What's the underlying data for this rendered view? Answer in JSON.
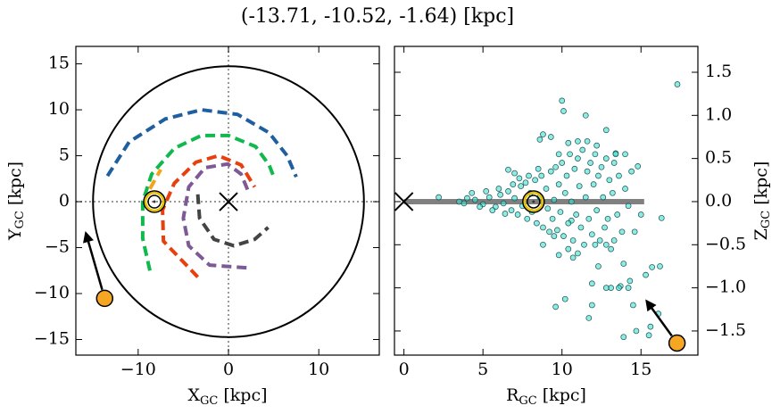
{
  "title": "(-13.71, -10.52, -1.64) [kpc]",
  "chart_data": [
    {
      "type": "line",
      "xlabel": {
        "main": "X",
        "sub": "GC",
        "unit": " [kpc]"
      },
      "ylabel": {
        "main": "Y",
        "sub": "GC",
        "unit": " [kpc]"
      },
      "xlim": [
        -16.9,
        16.7
      ],
      "ylim": [
        -16.7,
        16.9
      ],
      "xticks": [
        {
          "value": -10,
          "label": "−10"
        },
        0,
        10
      ],
      "yticks": [
        {
          "value": -15,
          "label": "−15"
        },
        {
          "value": -10,
          "label": "−10"
        },
        {
          "value": -5,
          "label": "−5"
        },
        0,
        5,
        10,
        15
      ],
      "boundary_radius": 15,
      "galactic_center": {
        "x": 0,
        "y": 0
      },
      "sun": {
        "x": -8.2,
        "y": 0
      },
      "target": {
        "x": -13.71,
        "y": -10.52,
        "color": "#f5a623"
      },
      "series": [
        {
          "color": "#1f5fa0",
          "x": [
            -13.4,
            -11,
            -7,
            -3,
            1,
            4.5,
            6.5,
            7.5
          ],
          "values": [
            2.8,
            6.5,
            9,
            10,
            9.5,
            7.5,
            5,
            2.7
          ]
        },
        {
          "color": "#11b84e",
          "x": [
            -8.7,
            -9.5,
            -9.5,
            -8.5,
            -6,
            -3,
            0,
            3,
            4.5,
            5.1
          ],
          "values": [
            -7.5,
            -4,
            0,
            3,
            5.8,
            7.2,
            7.2,
            6,
            4,
            2.5
          ]
        },
        {
          "color": "#f5a21b",
          "x": [
            -8.7,
            -7.5
          ],
          "values": [
            1.4,
            3.5
          ]
        },
        {
          "color": "#e8400c",
          "x": [
            -3.4,
            -7.2,
            -7.3,
            -6,
            -3.6,
            -1.1,
            1.4,
            2.9
          ],
          "values": [
            -8.2,
            -4.3,
            -0.9,
            2,
            4.3,
            5,
            4,
            1.6
          ]
        },
        {
          "color": "#7d5a96",
          "x": [
            2,
            -2.1,
            -4.4,
            -5,
            -4.4,
            -2.6,
            -0.1,
            1.4,
            2.2
          ],
          "values": [
            -7.2,
            -6.9,
            -4.8,
            -1.8,
            1.6,
            3.7,
            4.1,
            3,
            1.1
          ]
        },
        {
          "color": "#444444",
          "x": [
            -3.4,
            -3.2,
            -1.6,
            0.6,
            2.9,
            4.4
          ],
          "values": [
            0.8,
            -1.8,
            -4.1,
            -4.8,
            -4.1,
            -2.8
          ]
        }
      ]
    },
    {
      "type": "scatter",
      "xlabel": {
        "main": "R",
        "sub": "GC",
        "unit": " [kpc]"
      },
      "ylabel": {
        "main": "Z",
        "sub": "GC",
        "unit": " [kpc]"
      },
      "yaxis_side": "right",
      "xlim": [
        -0.6,
        18.6
      ],
      "ylim": [
        -1.78,
        1.8
      ],
      "xticks": [
        0,
        5,
        10,
        15
      ],
      "yticks": [
        {
          "value": -1.5,
          "label": "−1.5"
        },
        {
          "value": -1.0,
          "label": "−1.0"
        },
        {
          "value": -0.5,
          "label": "−0.5"
        },
        {
          "value": 0,
          "label": "0.0"
        },
        0.5,
        {
          "value": 1.0,
          "label": "1.0"
        },
        1.5
      ],
      "disk": {
        "x": [
          0,
          15.2
        ],
        "y": 0,
        "color": "#808080"
      },
      "galactic_center": {
        "x": 0,
        "y": 0
      },
      "sun": {
        "x": 8.2,
        "y": 0
      },
      "target": {
        "x": 17.28,
        "y": -1.64,
        "color": "#f5a623"
      },
      "color": "#40e0d0",
      "edgecolor": "#1b4f4f",
      "x": [
        17.3,
        10.0,
        11.5,
        10.1,
        12.8,
        11.0,
        10.4,
        9.3,
        8.8,
        8.6,
        14.0,
        14.8,
        13.4,
        7.0,
        6.6,
        4.3,
        2.2,
        3.5,
        15.0,
        16.3,
        14.6,
        13.3,
        12.1,
        9.5,
        8.8,
        10.7,
        12.3,
        13.9,
        9.8,
        14.3,
        15.3,
        14.2,
        16.2,
        15.7,
        13.1,
        13.7,
        11.9,
        12.8,
        13.6,
        10.2,
        14.5,
        16.1,
        11.9,
        11.7,
        14.7,
        13.9,
        15.5,
        15.6,
        9.6,
        10.6,
        4.5,
        5.0,
        5.4,
        5.8,
        6.1,
        6.3,
        6.6,
        6.8,
        7.0,
        7.2,
        7.4,
        7.5,
        7.7,
        7.8,
        8.0,
        8.1,
        8.3,
        8.4,
        8.6,
        8.7,
        8.8,
        9.0,
        9.1,
        9.3,
        9.4,
        9.5,
        9.6,
        9.7,
        9.8,
        9.9,
        10.0,
        10.1,
        10.2,
        10.3,
        10.4,
        10.5,
        10.6,
        10.7,
        10.8,
        10.9,
        11.0,
        11.1,
        11.2,
        11.3,
        11.4,
        11.5,
        11.6,
        11.7,
        11.8,
        11.9,
        12.0,
        12.1,
        12.2,
        12.3,
        12.4,
        12.5,
        12.6,
        12.7,
        12.8,
        12.9,
        13.0,
        13.1,
        13.2,
        13.3,
        13.5,
        13.6,
        13.8,
        14.0,
        14.2,
        14.4,
        5.2,
        5.6,
        6.0,
        6.4,
        6.9,
        7.3,
        7.9,
        8.5,
        9.2,
        9.8,
        10.4,
        11.0,
        11.6,
        12.2,
        12.8,
        13.4,
        3.8,
        4.0,
        4.8
      ],
      "values": [
        1.36,
        1.17,
        1.0,
        1.05,
        0.83,
        0.7,
        0.68,
        0.75,
        0.78,
        0.72,
        0.55,
        0.41,
        0.56,
        0.33,
        0.37,
        0.1,
        0.05,
        0.0,
        -0.15,
        -0.19,
        -0.35,
        -0.45,
        -0.5,
        -0.4,
        -0.5,
        -0.65,
        -0.75,
        -0.72,
        -0.62,
        -0.92,
        -0.85,
        -1.0,
        -0.75,
        -0.76,
        -1.0,
        -0.98,
        -0.95,
        -1.0,
        -1.0,
        -1.13,
        -1.2,
        -1.3,
        -1.2,
        -1.35,
        -1.5,
        -1.57,
        -1.55,
        -1.45,
        -1.22,
        -0.22,
        0.02,
        -0.03,
        0.05,
        -0.06,
        0.08,
        -0.02,
        0.12,
        -0.1,
        0.04,
        -0.15,
        0.18,
        -0.05,
        0.22,
        -0.2,
        0.1,
        -0.12,
        0.25,
        -0.25,
        0.05,
        0.3,
        -0.3,
        0.15,
        -0.08,
        0.35,
        -0.2,
        0.02,
        0.4,
        -0.33,
        0.2,
        -0.12,
        0.45,
        -0.4,
        0.1,
        0.3,
        -0.25,
        0.55,
        0.0,
        -0.45,
        0.38,
        -0.15,
        0.5,
        0.18,
        -0.3,
        0.6,
        -0.5,
        0.05,
        0.35,
        -0.2,
        0.45,
        -0.38,
        0.2,
        0.55,
        -0.1,
        0.3,
        -0.45,
        0.4,
        0.05,
        -0.3,
        0.5,
        -0.2,
        0.25,
        -0.55,
        0.1,
        0.45,
        -0.15,
        0.3,
        -0.35,
        0.15,
        -0.05,
        0.35,
        0.12,
        -0.1,
        0.15,
        -0.14,
        0.2,
        0.27,
        0.3,
        0.38,
        -0.35,
        0.55,
        -0.55,
        -0.6,
        0.7,
        0.65,
        -0.5,
        0.55,
        -0.02,
        0.04,
        -0.06
      ]
    }
  ]
}
